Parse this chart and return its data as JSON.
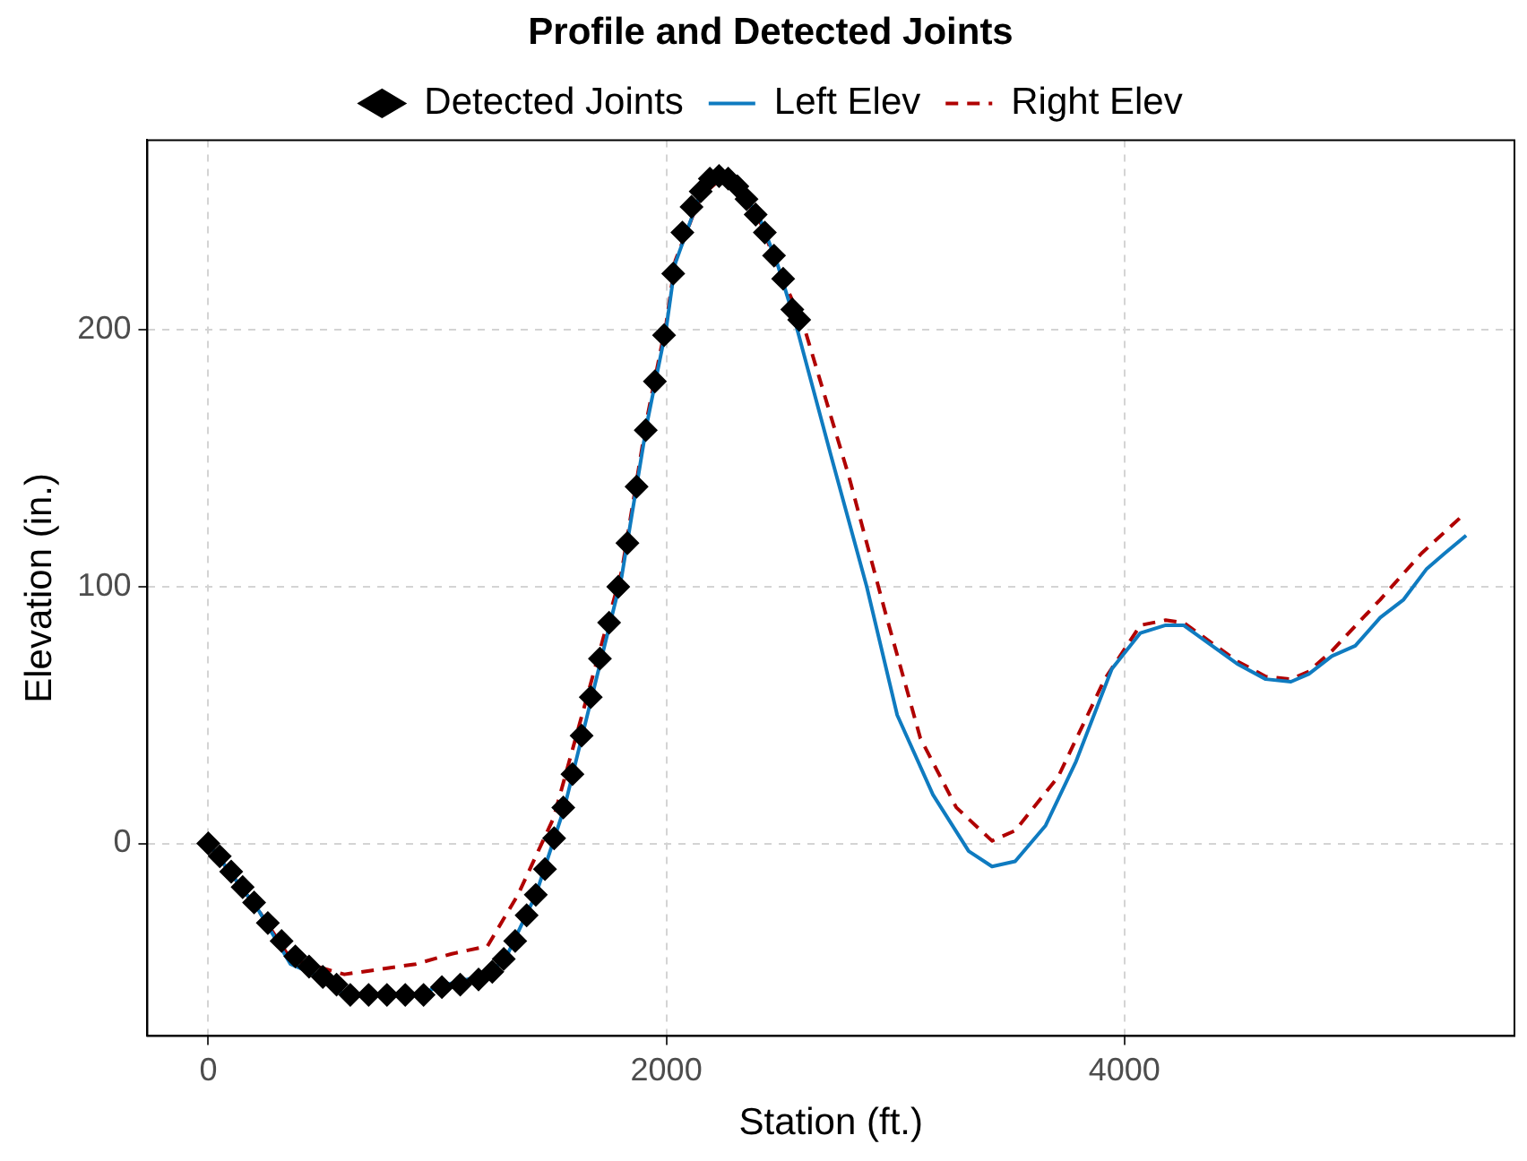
{
  "chart_data": {
    "type": "line",
    "title": "Profile and Detected Joints",
    "xlabel": "Station (ft.)",
    "ylabel": "Elevation (in.)",
    "xlim": [
      -266,
      5703
    ],
    "ylim": [
      -75,
      274
    ],
    "xticks": [
      0,
      2000,
      4000
    ],
    "yticks": [
      0,
      100,
      200
    ],
    "grid": true,
    "legend": "top",
    "series": [
      {
        "name": "Detected Joints",
        "type": "scatter",
        "marker": "diamond",
        "color": "#000000",
        "x": [
          0,
          50,
          100,
          150,
          200,
          260,
          320,
          380,
          440,
          500,
          560,
          620,
          700,
          780,
          860,
          940,
          1020,
          1100,
          1180,
          1240,
          1290,
          1340,
          1390,
          1430,
          1470,
          1510,
          1550,
          1590,
          1630,
          1670,
          1710,
          1750,
          1790,
          1830,
          1870,
          1910,
          1950,
          1990,
          2030,
          2070,
          2110,
          2150,
          2190,
          2230,
          2270,
          2310,
          2350,
          2390,
          2430,
          2470,
          2510,
          2550,
          2580
        ],
        "values": [
          0,
          -5,
          -11,
          -17,
          -23,
          -31,
          -38,
          -44,
          -48,
          -52,
          -55,
          -59,
          -59,
          -59,
          -59,
          -59,
          -56,
          -55,
          -53,
          -50,
          -45,
          -38,
          -28,
          -20,
          -10,
          2,
          14,
          27,
          42,
          57,
          72,
          86,
          100,
          117,
          139,
          161,
          180,
          198,
          222,
          238,
          248,
          254,
          259,
          260,
          259,
          256,
          251,
          245,
          238,
          229,
          220,
          208,
          204
        ]
      },
      {
        "name": "Left Elev",
        "type": "line",
        "line_style": "solid",
        "color": "#0f7bc0",
        "x": [
          0,
          219,
          359,
          516,
          594,
          906,
          1039,
          1219,
          1297,
          1430,
          1555,
          1805,
          1914,
          2000,
          2039,
          2148,
          2227,
          2305,
          2406,
          2484,
          2563,
          2719,
          2875,
          3008,
          3164,
          3320,
          3422,
          3523,
          3656,
          3789,
          3945,
          4070,
          4180,
          4258,
          4383,
          4492,
          4617,
          4727,
          4805,
          4906,
          5008,
          5117,
          5219,
          5320,
          5398,
          5492
        ],
        "values": [
          0,
          -26,
          -47,
          -53,
          -59,
          -59,
          -55,
          -51,
          -45,
          -20,
          14,
          104,
          163,
          201,
          226,
          253,
          261,
          257,
          244,
          226,
          203,
          151,
          100,
          50,
          19,
          -3,
          -9,
          -7,
          7,
          32,
          68,
          82,
          85,
          85,
          77,
          70,
          64,
          63,
          66,
          73,
          77,
          88,
          95,
          107,
          113,
          120
        ]
      },
      {
        "name": "Right Elev",
        "type": "line",
        "line_style": "dashed",
        "color": "#b00000",
        "x": [
          0,
          219,
          359,
          594,
          906,
          1063,
          1219,
          1352,
          1508,
          1805,
          1914,
          2000,
          2039,
          2148,
          2227,
          2305,
          2406,
          2484,
          2602,
          2797,
          2953,
          3109,
          3266,
          3422,
          3523,
          3711,
          3914,
          4070,
          4180,
          4258,
          4383,
          4492,
          4617,
          4727,
          4805,
          4906,
          5117,
          5297,
          5492
        ],
        "values": [
          0,
          -26,
          -45,
          -51,
          -47,
          -43,
          -40,
          -20,
          10,
          106,
          165,
          203,
          227,
          252,
          258,
          255,
          243,
          225,
          201,
          143,
          91,
          41,
          14,
          1,
          5,
          26,
          64,
          85,
          87,
          86,
          78,
          71,
          65,
          64,
          67,
          75,
          95,
          113,
          129
        ]
      }
    ]
  }
}
